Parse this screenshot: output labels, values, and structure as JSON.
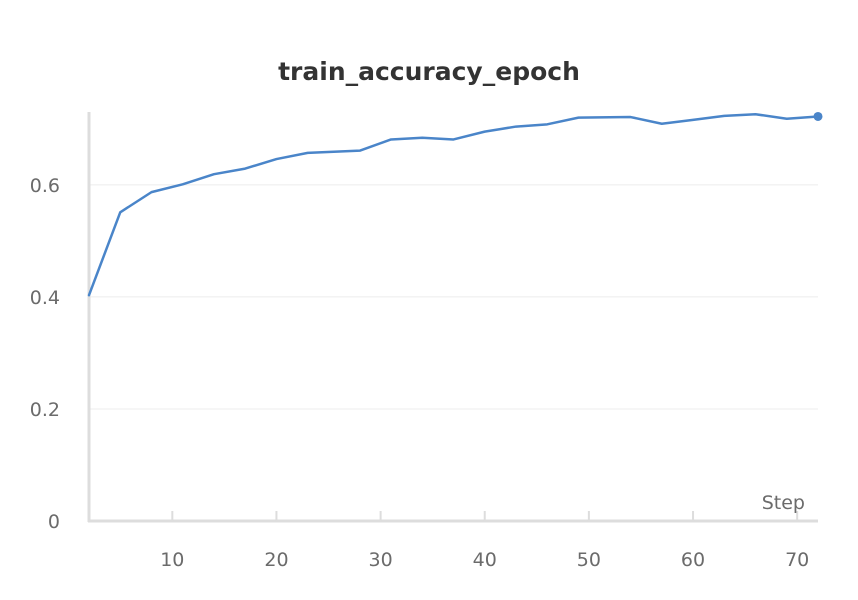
{
  "chart_data": {
    "type": "line",
    "title": "train_accuracy_epoch",
    "xlabel": "Step",
    "ylabel": "",
    "xlim": [
      2,
      72
    ],
    "ylim": [
      0,
      0.73
    ],
    "xticks": [
      10,
      20,
      30,
      40,
      50,
      60,
      70
    ],
    "yticks": [
      0,
      0.2,
      0.4,
      0.6
    ],
    "xtick_labels": [
      "10",
      "20",
      "30",
      "40",
      "50",
      "60",
      "70"
    ],
    "ytick_labels": [
      "0",
      "0.2",
      "0.4",
      "0.6"
    ],
    "grid": true,
    "series": [
      {
        "color": "#4a85c9",
        "last_point_marker": true,
        "x": [
          2,
          5,
          8,
          11,
          14,
          17,
          20,
          23,
          28,
          31,
          34,
          37,
          40,
          43,
          46,
          49,
          54,
          57,
          60,
          63,
          66,
          69,
          72
        ],
        "y": [
          0.403,
          0.551,
          0.587,
          0.601,
          0.619,
          0.629,
          0.646,
          0.657,
          0.661,
          0.681,
          0.684,
          0.681,
          0.695,
          0.704,
          0.708,
          0.72,
          0.721,
          0.709,
          0.716,
          0.723,
          0.726,
          0.718,
          0.722
        ]
      }
    ]
  }
}
